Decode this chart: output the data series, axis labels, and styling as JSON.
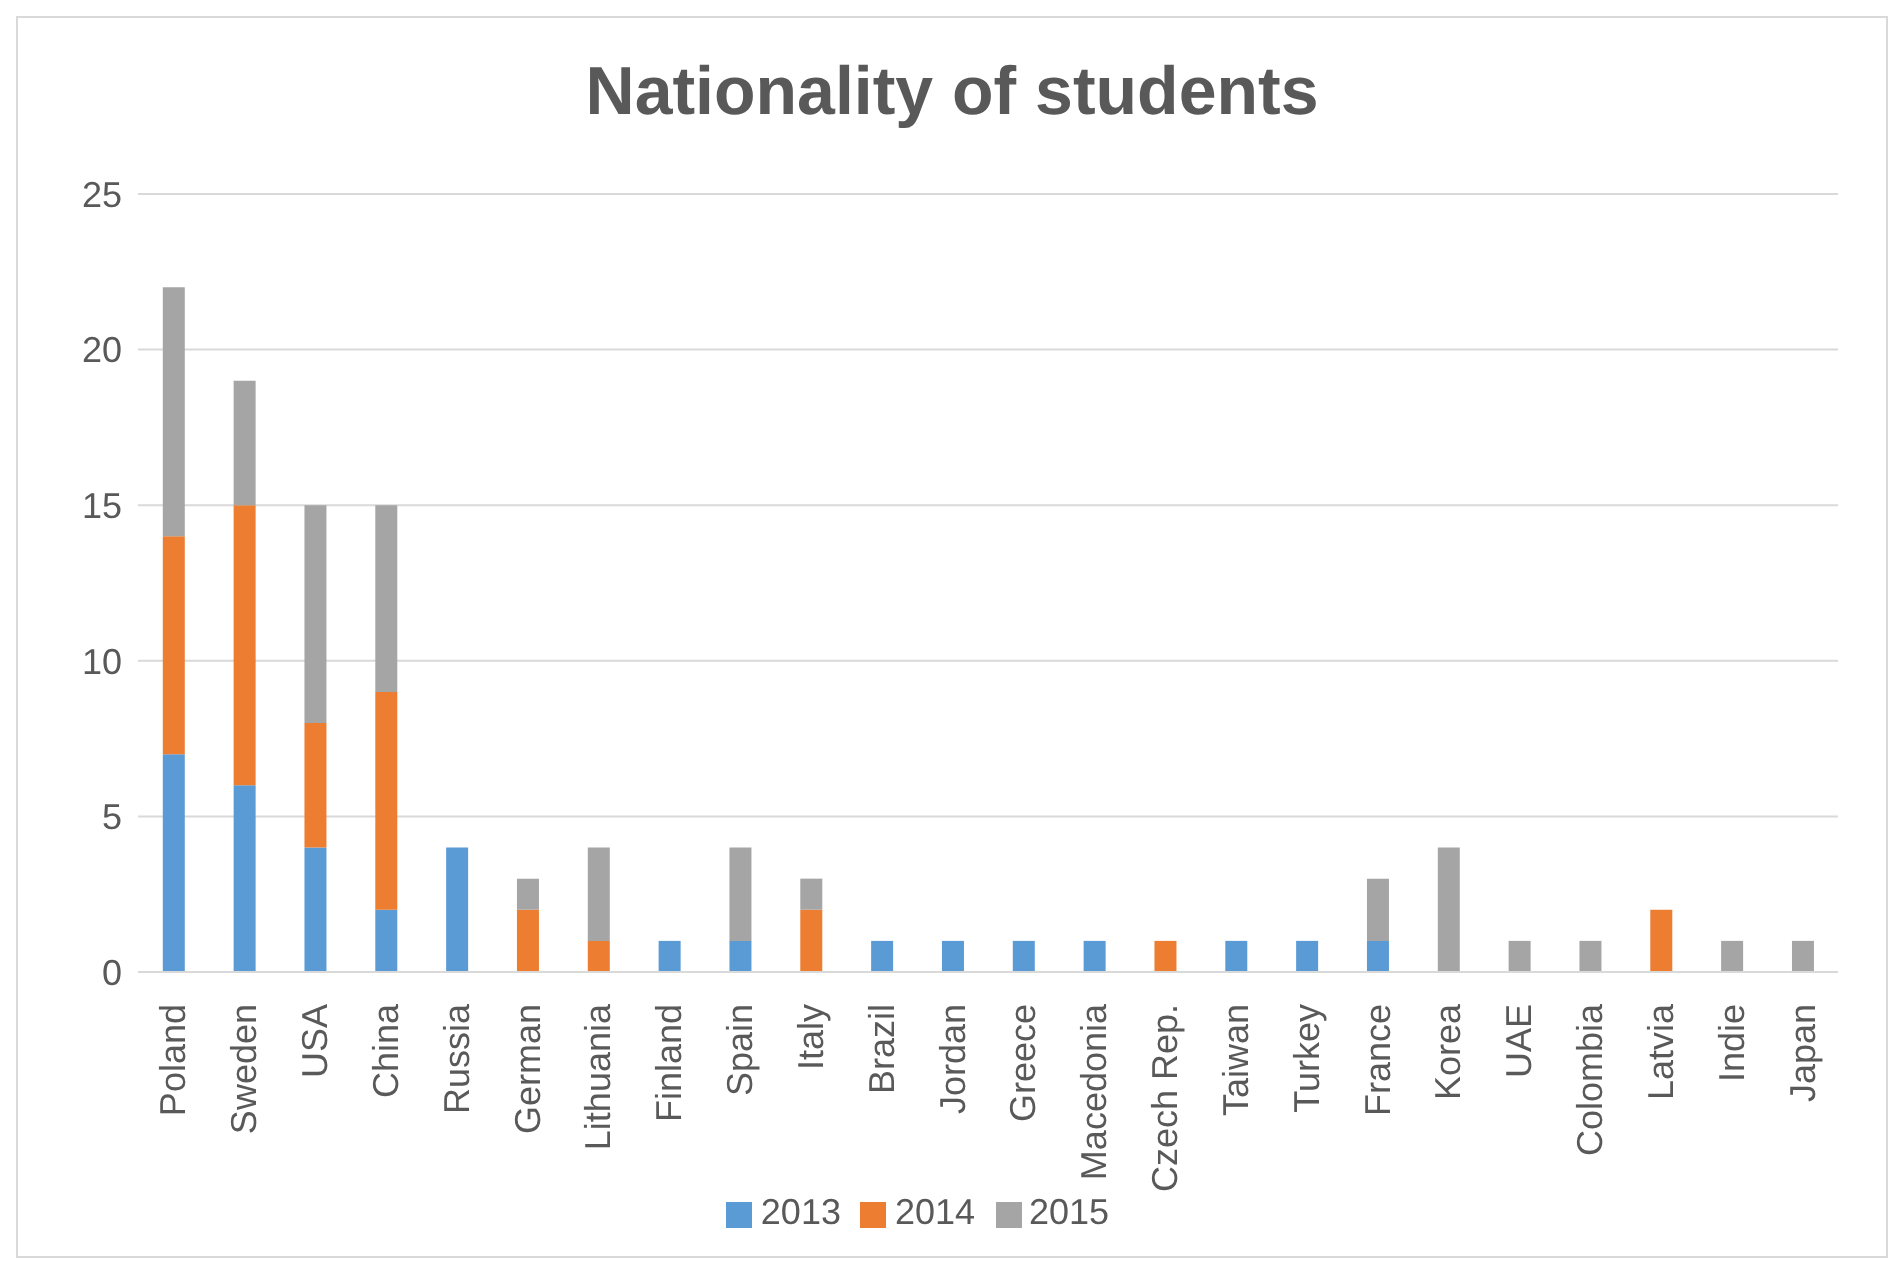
{
  "chart_data": {
    "type": "bar",
    "title": "Nationality of students",
    "categories": [
      "Poland",
      "Sweden",
      "USA",
      "China",
      "Russia",
      "German",
      "Lithuania",
      "Finland",
      "Spain",
      "Italy",
      "Brazil",
      "Jordan",
      "Greece",
      "Macedonia",
      "Czech Rep.",
      "Taiwan",
      "Turkey",
      "France",
      "Korea",
      "UAE",
      "Colombia",
      "Latvia",
      "Indie",
      "Japan"
    ],
    "series": [
      {
        "name": "2013",
        "color": "#5b9bd5",
        "values": [
          7,
          6,
          4,
          2,
          4,
          0,
          0,
          1,
          1,
          0,
          1,
          1,
          1,
          1,
          0,
          1,
          1,
          1,
          0,
          0,
          0,
          0,
          0,
          0
        ]
      },
      {
        "name": "2014",
        "color": "#ed7d31",
        "values": [
          7,
          9,
          4,
          7,
          0,
          2,
          1,
          0,
          0,
          2,
          0,
          0,
          0,
          0,
          1,
          0,
          0,
          0,
          0,
          0,
          0,
          2,
          0,
          0
        ]
      },
      {
        "name": "2015",
        "color": "#a5a5a5",
        "values": [
          8,
          4,
          7,
          6,
          0,
          1,
          3,
          0,
          3,
          1,
          0,
          0,
          0,
          0,
          0,
          0,
          0,
          2,
          4,
          1,
          1,
          0,
          1,
          1
        ]
      }
    ],
    "stacked": true,
    "ylim": [
      0,
      25
    ],
    "yticks": [
      0,
      5,
      10,
      15,
      20,
      25
    ],
    "grid": "y",
    "legend": "bottom"
  }
}
